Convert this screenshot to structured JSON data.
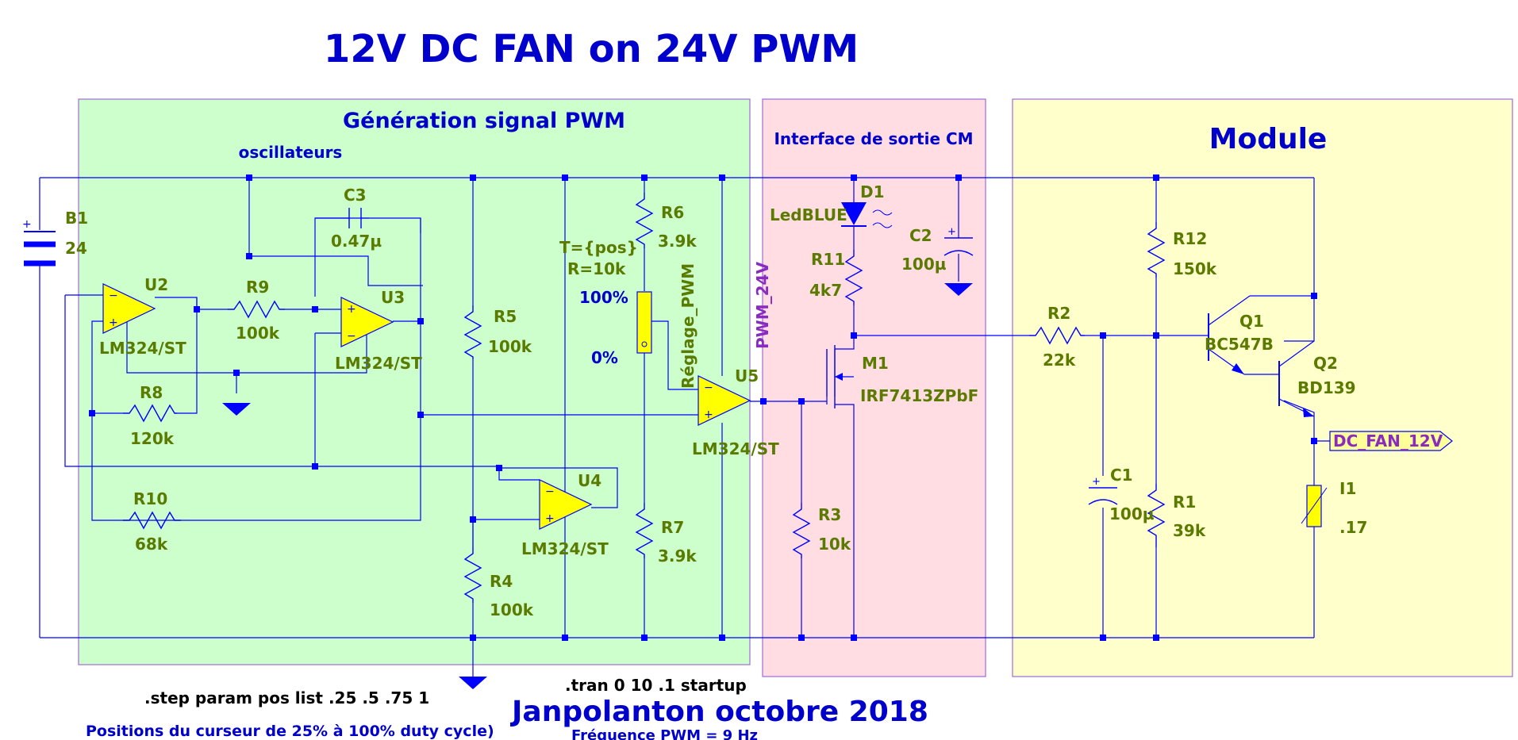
{
  "title": "12V DC FAN on 24V PWM",
  "regions": {
    "pwm_title": "Génération signal PWM",
    "pwm_sub": "oscillateurs",
    "interface_title": "Interface de sortie CM",
    "module_title": "Module"
  },
  "components": {
    "B1": {
      "name": "B1",
      "value": "24"
    },
    "U2": {
      "name": "U2",
      "model": "LM324/ST"
    },
    "U3": {
      "name": "U3",
      "model": "LM324/ST"
    },
    "U4": {
      "name": "U4",
      "model": "LM324/ST"
    },
    "U5": {
      "name": "U5",
      "model": "LM324/ST"
    },
    "C3": {
      "name": "C3",
      "value": "0.47µ"
    },
    "R9": {
      "name": "R9",
      "value": "100k"
    },
    "R8": {
      "name": "R8",
      "value": "120k"
    },
    "R10": {
      "name": "R10",
      "value": "68k"
    },
    "R5": {
      "name": "R5",
      "value": "100k"
    },
    "R4": {
      "name": "R4",
      "value": "100k"
    },
    "R6": {
      "name": "R6",
      "value": "3.9k"
    },
    "R7": {
      "name": "R7",
      "value": "3.9k"
    },
    "pot": {
      "params1": "T={pos}",
      "params2": "R=10k",
      "name": "Réglage_PWM",
      "top": "100%",
      "bottom": "0%"
    },
    "D1": {
      "name": "D1",
      "model": "LedBLUE"
    },
    "C2": {
      "name": "C2",
      "value": "100µ"
    },
    "R11": {
      "name": "R11",
      "value": "4k7"
    },
    "M1": {
      "name": "M1",
      "model": "IRF7413ZPbF"
    },
    "R3": {
      "name": "R3",
      "value": "10k"
    },
    "R2": {
      "name": "R2",
      "value": "22k"
    },
    "R12": {
      "name": "R12",
      "value": "150k"
    },
    "R1": {
      "name": "R1",
      "value": "39k"
    },
    "C1": {
      "name": "C1",
      "value": "100µ"
    },
    "Q1": {
      "name": "Q1",
      "model": "BC547B"
    },
    "Q2": {
      "name": "Q2",
      "model": "BD139"
    },
    "I1": {
      "name": "I1",
      "value": ".17"
    }
  },
  "nets": {
    "pwm": "PWM_24V",
    "fan": "DC_FAN_12V"
  },
  "directives": {
    "step": ".step param pos list .25 .5 .75 1",
    "tran": ".tran 0 10 .1 startup"
  },
  "footer": {
    "author": "Janpolanton octobre 2018",
    "note": "Positions du curseur de 25% à 100% duty cycle)",
    "freq": "Fréquence PWM = 9 Hz"
  }
}
